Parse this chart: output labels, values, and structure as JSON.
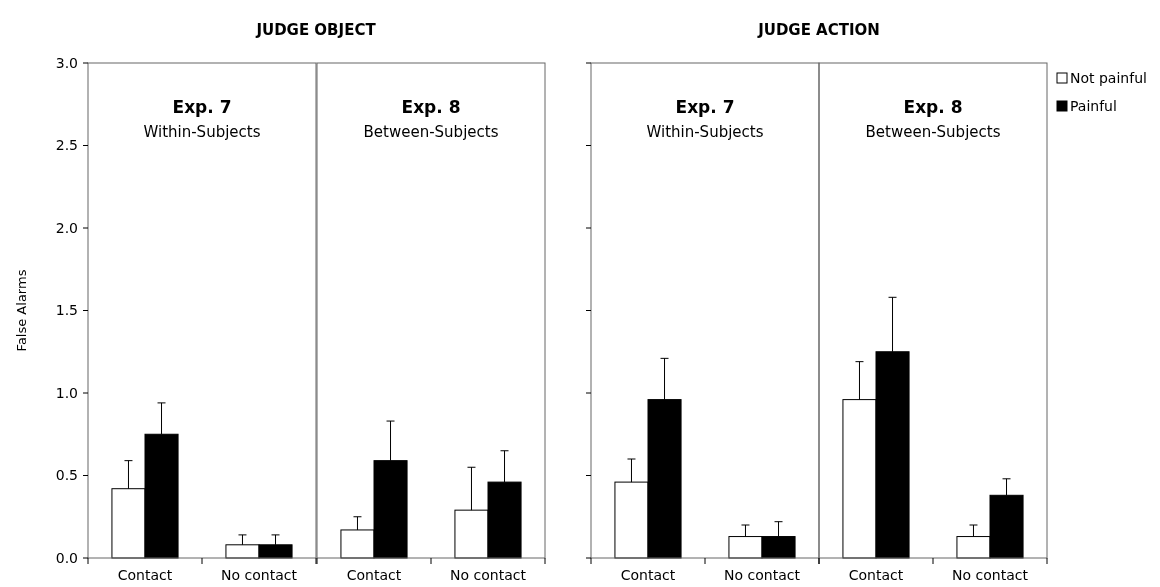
{
  "chart_data": [
    {
      "type": "bar",
      "title": "Exp. 7",
      "subtitle": "Within-Subjects",
      "annotations": [
        "JUDGE OBJECT"
      ],
      "ylabel": "False Alarms",
      "categories": [
        "Contact",
        "No contact"
      ],
      "ylim": [
        0,
        3
      ],
      "yticks": [
        {
          "value": 0,
          "label": "0.0"
        },
        {
          "value": 0.5,
          "label": "0.5"
        },
        {
          "value": 1,
          "label": "1.0"
        },
        {
          "value": 1.5,
          "label": "1.5"
        },
        {
          "value": 2,
          "label": "2.0"
        },
        {
          "value": 2.5,
          "label": "2.5"
        },
        {
          "value": 3,
          "label": "3.0"
        }
      ],
      "grid": false,
      "legend": false,
      "series": [
        {
          "color": "#ffffff",
          "values": [
            0.42,
            0.08
          ],
          "errors": [
            [
              0.42,
              0.59
            ],
            [
              0.08,
              0.14
            ]
          ]
        },
        {
          "color": "#000000",
          "values": [
            0.75,
            0.08
          ],
          "errors": [
            [
              0.75,
              0.94
            ],
            [
              0.08,
              0.14
            ]
          ]
        }
      ]
    },
    {
      "type": "bar",
      "title": "Exp. 8",
      "subtitle": "Between-Subjects",
      "categories": [
        "Contact",
        "No contact"
      ],
      "ylim": [
        0,
        3
      ],
      "tick_labels": "x",
      "grid": false,
      "legend": false,
      "series": [
        {
          "color": "#ffffff",
          "values": [
            0.17,
            0.29
          ],
          "errors": [
            [
              0.17,
              0.25
            ],
            [
              0.29,
              0.55
            ]
          ]
        },
        {
          "color": "#000000",
          "values": [
            0.59,
            0.46
          ],
          "errors": [
            [
              0.59,
              0.83
            ],
            [
              0.46,
              0.65
            ]
          ]
        }
      ]
    },
    {
      "type": "bar",
      "title": "Exp. 7",
      "subtitle": "Within-Subjects",
      "annotations": [
        "JUDGE ACTION"
      ],
      "categories": [
        "Contact",
        "No contact"
      ],
      "ylim": [
        0,
        3
      ],
      "yticks": [
        {
          "value": 0,
          "label": null
        },
        {
          "value": 0.5,
          "label": null
        },
        {
          "value": 1,
          "label": null
        },
        {
          "value": 1.5,
          "label": null
        },
        {
          "value": 2,
          "label": null
        },
        {
          "value": 2.5,
          "label": null
        },
        {
          "value": 3,
          "label": null
        }
      ],
      "tick_labels": "x",
      "grid": false,
      "legend": false,
      "series": [
        {
          "color": "#ffffff",
          "values": [
            0.46,
            0.13
          ],
          "errors": [
            [
              0.46,
              0.6
            ],
            [
              0.13,
              0.2
            ]
          ]
        },
        {
          "color": "#000000",
          "values": [
            0.96,
            0.13
          ],
          "errors": [
            [
              0.96,
              1.21
            ],
            [
              0.13,
              0.22
            ]
          ]
        }
      ]
    },
    {
      "type": "bar",
      "title": "Exp. 8",
      "subtitle": "Between-Subjects",
      "categories": [
        "Contact",
        "No contact"
      ],
      "ylim": [
        0,
        3
      ],
      "tick_labels": "x",
      "grid": false,
      "legend": "right",
      "series": [
        {
          "name": "Not painful",
          "color": "#ffffff",
          "values": [
            0.96,
            0.13
          ],
          "errors": [
            [
              0.96,
              1.19
            ],
            [
              0.13,
              0.2
            ]
          ]
        },
        {
          "name": "Painful",
          "color": "#000000",
          "values": [
            1.25,
            0.38
          ],
          "errors": [
            [
              1.25,
              1.58
            ],
            [
              0.38,
              0.48
            ]
          ]
        }
      ]
    }
  ]
}
